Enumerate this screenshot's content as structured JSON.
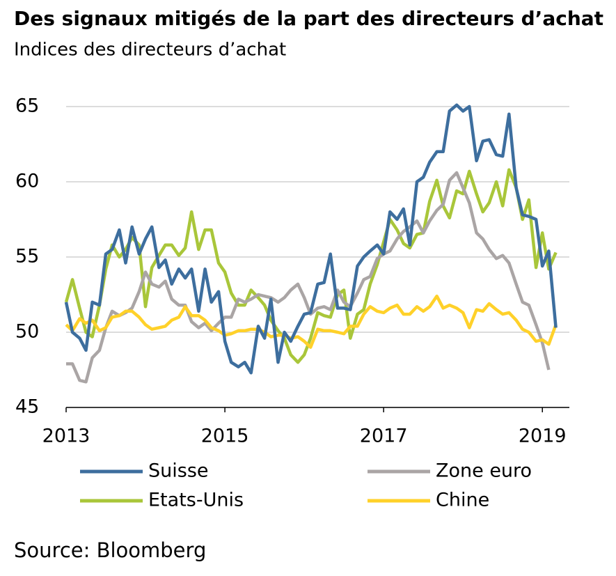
{
  "chart_data": {
    "type": "line",
    "title": "Des signaux mitigés de la part des directeurs d’achat",
    "subtitle": "Indices des directeurs d’achat",
    "source": "Source: Bloomberg",
    "x": [
      2013,
      2013.08,
      2013.17,
      2013.25,
      2013.33,
      2013.42,
      2013.5,
      2013.58,
      2013.67,
      2013.75,
      2013.83,
      2013.92,
      2014,
      2014.08,
      2014.17,
      2014.25,
      2014.33,
      2014.42,
      2014.5,
      2014.58,
      2014.67,
      2014.75,
      2014.83,
      2014.92,
      2015,
      2015.08,
      2015.17,
      2015.25,
      2015.33,
      2015.42,
      2015.5,
      2015.58,
      2015.67,
      2015.75,
      2015.83,
      2015.92,
      2016,
      2016.08,
      2016.17,
      2016.25,
      2016.33,
      2016.42,
      2016.5,
      2016.58,
      2016.67,
      2016.75,
      2016.83,
      2016.92,
      2017,
      2017.08,
      2017.17,
      2017.25,
      2017.33,
      2017.42,
      2017.5,
      2017.58,
      2017.67,
      2017.75,
      2017.83,
      2017.92,
      2018,
      2018.08,
      2018.17,
      2018.25,
      2018.33,
      2018.42,
      2018.5,
      2018.58,
      2018.67,
      2018.75,
      2018.83,
      2018.92,
      2019,
      2019.08,
      2019.17
    ],
    "xlim": [
      2013,
      2019.34
    ],
    "xticks": [
      2013,
      2015,
      2017,
      2019
    ],
    "ylim": [
      45,
      65
    ],
    "yticks": [
      45,
      50,
      55,
      60,
      65
    ],
    "grid": true,
    "series": [
      {
        "name": "Suisse",
        "color": "#3d6e9e",
        "values": [
          52,
          50,
          49.6,
          48.8,
          52,
          51.8,
          55.2,
          55.5,
          56.8,
          54.6,
          57,
          55.2,
          56.2,
          57,
          54.3,
          54.8,
          53.2,
          54.2,
          53.6,
          54.2,
          51.4,
          54.2,
          52,
          52.7,
          49.4,
          48,
          47.7,
          48,
          47.3,
          50.4,
          49.6,
          52.2,
          48,
          50,
          49.4,
          50.4,
          51.2,
          51.3,
          53.2,
          53.3,
          55.2,
          51.6,
          51.6,
          51.5,
          54.4,
          55,
          55.4,
          55.8,
          55.2,
          58,
          57.5,
          58.2,
          55.8,
          60,
          60.3,
          61.3,
          62,
          62,
          64.7,
          65.1,
          64.7,
          65,
          61.4,
          62.7,
          62.8,
          61.8,
          61.7,
          64.5,
          59.6,
          57.8,
          57.7,
          57.5,
          54.4,
          55.4,
          50.3
        ]
      },
      {
        "name": "Zone euro",
        "color": "#aaa5a5",
        "values": [
          47.9,
          47.9,
          46.8,
          46.7,
          48.3,
          48.8,
          50.3,
          51.4,
          51.1,
          51.3,
          51.6,
          52.7,
          54,
          53.2,
          53,
          53.4,
          52.2,
          51.8,
          51.8,
          50.7,
          50.3,
          50.6,
          50.1,
          50.6,
          51,
          51,
          52.2,
          52,
          52.2,
          52.5,
          52.4,
          52.3,
          52,
          52.3,
          52.8,
          53.2,
          52.3,
          51.2,
          51.6,
          51.7,
          51.5,
          52.8,
          52,
          51.7,
          52.6,
          53.5,
          53.7,
          54.9,
          55.2,
          55.4,
          56.2,
          56.7,
          57,
          57.4,
          56.6,
          57.4,
          58.1,
          58.5,
          60.1,
          60.6,
          59.6,
          58.6,
          56.6,
          56.2,
          55.5,
          54.9,
          55.1,
          54.6,
          53.2,
          52,
          51.8,
          50.5,
          49.3,
          47.5,
          null
        ]
      },
      {
        "name": "Etats-Unis",
        "color": "#a9c63a",
        "values": [
          52,
          53.5,
          51.6,
          50,
          49.7,
          51.8,
          54.2,
          55.8,
          55,
          55.5,
          56.3,
          55.8,
          51.7,
          54.3,
          55.1,
          55.8,
          55.8,
          55.1,
          55.6,
          58,
          55.5,
          56.8,
          56.8,
          54.6,
          54,
          52.6,
          51.8,
          51.8,
          52.8,
          52.3,
          51.8,
          50.8,
          50.1,
          49.6,
          48.5,
          48,
          48.5,
          49.6,
          51.3,
          51.1,
          51,
          52.5,
          52.8,
          49.6,
          51.2,
          51.5,
          53.2,
          54.5,
          56,
          57.5,
          56.8,
          55.9,
          55.6,
          56.5,
          56.6,
          58.7,
          60.1,
          58.4,
          57.6,
          59.4,
          59.2,
          60.7,
          59.2,
          58,
          58.6,
          60,
          58.4,
          60.8,
          59.6,
          57.5,
          58.8,
          54.3,
          56.6,
          54.2,
          55.3
        ]
      },
      {
        "name": "Chine",
        "color": "#ffd12a",
        "values": [
          50.5,
          50.1,
          50.9,
          50.6,
          50.8,
          50.1,
          50.3,
          51,
          51.1,
          51.4,
          51.4,
          51,
          50.5,
          50.2,
          50.3,
          50.4,
          50.8,
          51,
          51.7,
          51.1,
          51.1,
          50.8,
          50.3,
          50.1,
          49.8,
          49.9,
          50.1,
          50.1,
          50.2,
          50.2,
          50,
          49.7,
          49.8,
          49.8,
          49.6,
          49.7,
          49.4,
          49,
          50.2,
          50.1,
          50.1,
          50,
          49.9,
          50.4,
          50.4,
          51.2,
          51.7,
          51.4,
          51.3,
          51.6,
          51.8,
          51.2,
          51.2,
          51.7,
          51.4,
          51.7,
          52.4,
          51.6,
          51.8,
          51.6,
          51.3,
          50.3,
          51.5,
          51.4,
          51.9,
          51.5,
          51.2,
          51.3,
          50.8,
          50.2,
          50,
          49.4,
          49.5,
          49.2,
          50.5
        ]
      }
    ]
  }
}
